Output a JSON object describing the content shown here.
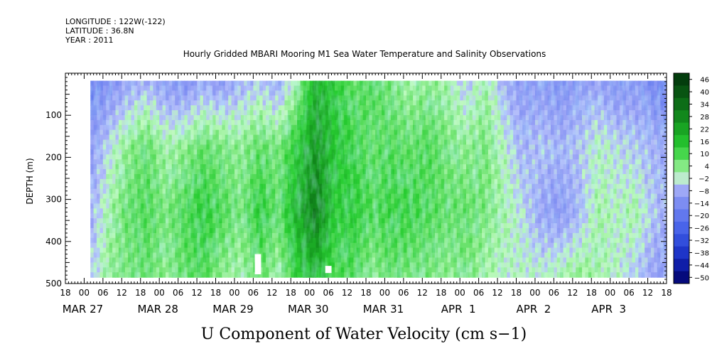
{
  "header": {
    "longitude": "LONGITUDE : 122W(-122)",
    "latitude": "LATITUDE : 36.8N",
    "year": "YEAR : 2011"
  },
  "chart_data": {
    "type": "heatmap",
    "title": "Hourly Gridded MBARI Mooring M1 Sea Water Temperature and Salinity Observations",
    "xlabel": "U Component of Water Velocity (cm s−1)",
    "ylabel": "DEPTH (m)",
    "ylim": [
      500,
      0
    ],
    "yticks": [
      100,
      200,
      300,
      400,
      500
    ],
    "xrange_hours": [
      -6,
      186
    ],
    "xtick_labels": [
      "18",
      "00",
      "06",
      "12",
      "18",
      "00",
      "06",
      "12",
      "18",
      "00",
      "06",
      "12",
      "18",
      "00",
      "06",
      "12",
      "18",
      "00",
      "06",
      "12",
      "18",
      "00",
      "06",
      "12",
      "18",
      "00",
      "06",
      "12",
      "18",
      "00",
      "06",
      "12",
      "18"
    ],
    "date_labels": [
      {
        "text": "MAR 27",
        "hour": 0
      },
      {
        "text": "MAR 28",
        "hour": 24
      },
      {
        "text": "MAR 29",
        "hour": 48
      },
      {
        "text": "MAR 30",
        "hour": 72
      },
      {
        "text": "MAR 31",
        "hour": 96
      },
      {
        "text": "APR  1",
        "hour": 120
      },
      {
        "text": "APR  2",
        "hour": 144
      },
      {
        "text": "APR  3",
        "hour": 168
      }
    ],
    "data_extent": {
      "hour_start": 2,
      "hour_end": 186,
      "depth_top": 18,
      "depth_bottom": 485
    },
    "depth_profile_hours": [
      2,
      8,
      14,
      20,
      26,
      32,
      38,
      44,
      50,
      56,
      62,
      68,
      74,
      80,
      86,
      92,
      98,
      104,
      110,
      116,
      122,
      128,
      134,
      140,
      146,
      152,
      158,
      164,
      170,
      176,
      182,
      186
    ],
    "depth_profile_velocity": [
      [
        -14,
        -8,
        -4,
        -2
      ],
      [
        -10,
        0,
        4,
        6
      ],
      [
        -6,
        6,
        10,
        8
      ],
      [
        -4,
        10,
        12,
        10
      ],
      [
        -8,
        4,
        8,
        6
      ],
      [
        -10,
        6,
        12,
        10
      ],
      [
        -6,
        10,
        16,
        12
      ],
      [
        -8,
        8,
        12,
        6
      ],
      [
        -4,
        6,
        8,
        4
      ],
      [
        -2,
        10,
        16,
        10
      ],
      [
        -6,
        8,
        10,
        4
      ],
      [
        4,
        16,
        22,
        16
      ],
      [
        22,
        28,
        34,
        20
      ],
      [
        16,
        18,
        16,
        12
      ],
      [
        10,
        14,
        16,
        12
      ],
      [
        12,
        10,
        12,
        6
      ],
      [
        8,
        12,
        14,
        10
      ],
      [
        4,
        10,
        14,
        8
      ],
      [
        6,
        12,
        12,
        8
      ],
      [
        4,
        8,
        10,
        6
      ],
      [
        -2,
        6,
        10,
        8
      ],
      [
        4,
        8,
        8,
        4
      ],
      [
        -4,
        2,
        4,
        2
      ],
      [
        -8,
        -4,
        0,
        2
      ],
      [
        -8,
        -2,
        -6,
        2
      ],
      [
        -10,
        -4,
        -8,
        4
      ],
      [
        -8,
        -2,
        -4,
        6
      ],
      [
        -6,
        2,
        4,
        4
      ],
      [
        -10,
        0,
        2,
        2
      ],
      [
        -8,
        -2,
        4,
        -2
      ],
      [
        -12,
        -4,
        -2,
        -6
      ],
      [
        -14,
        -6,
        -4,
        -8
      ]
    ],
    "colorbar": {
      "levels": [
        46,
        40,
        34,
        28,
        22,
        16,
        10,
        4,
        -2,
        -8,
        -14,
        -20,
        -26,
        -32,
        -38,
        -44,
        -50
      ],
      "min": -50,
      "max": 52
    },
    "gaps": [
      {
        "hour_start": 54.5,
        "hour_end": 56.5,
        "depth_top": 430,
        "depth_bottom": 478
      },
      {
        "hour_start": 77,
        "hour_end": 79,
        "depth_top": 458,
        "depth_bottom": 475
      }
    ]
  }
}
